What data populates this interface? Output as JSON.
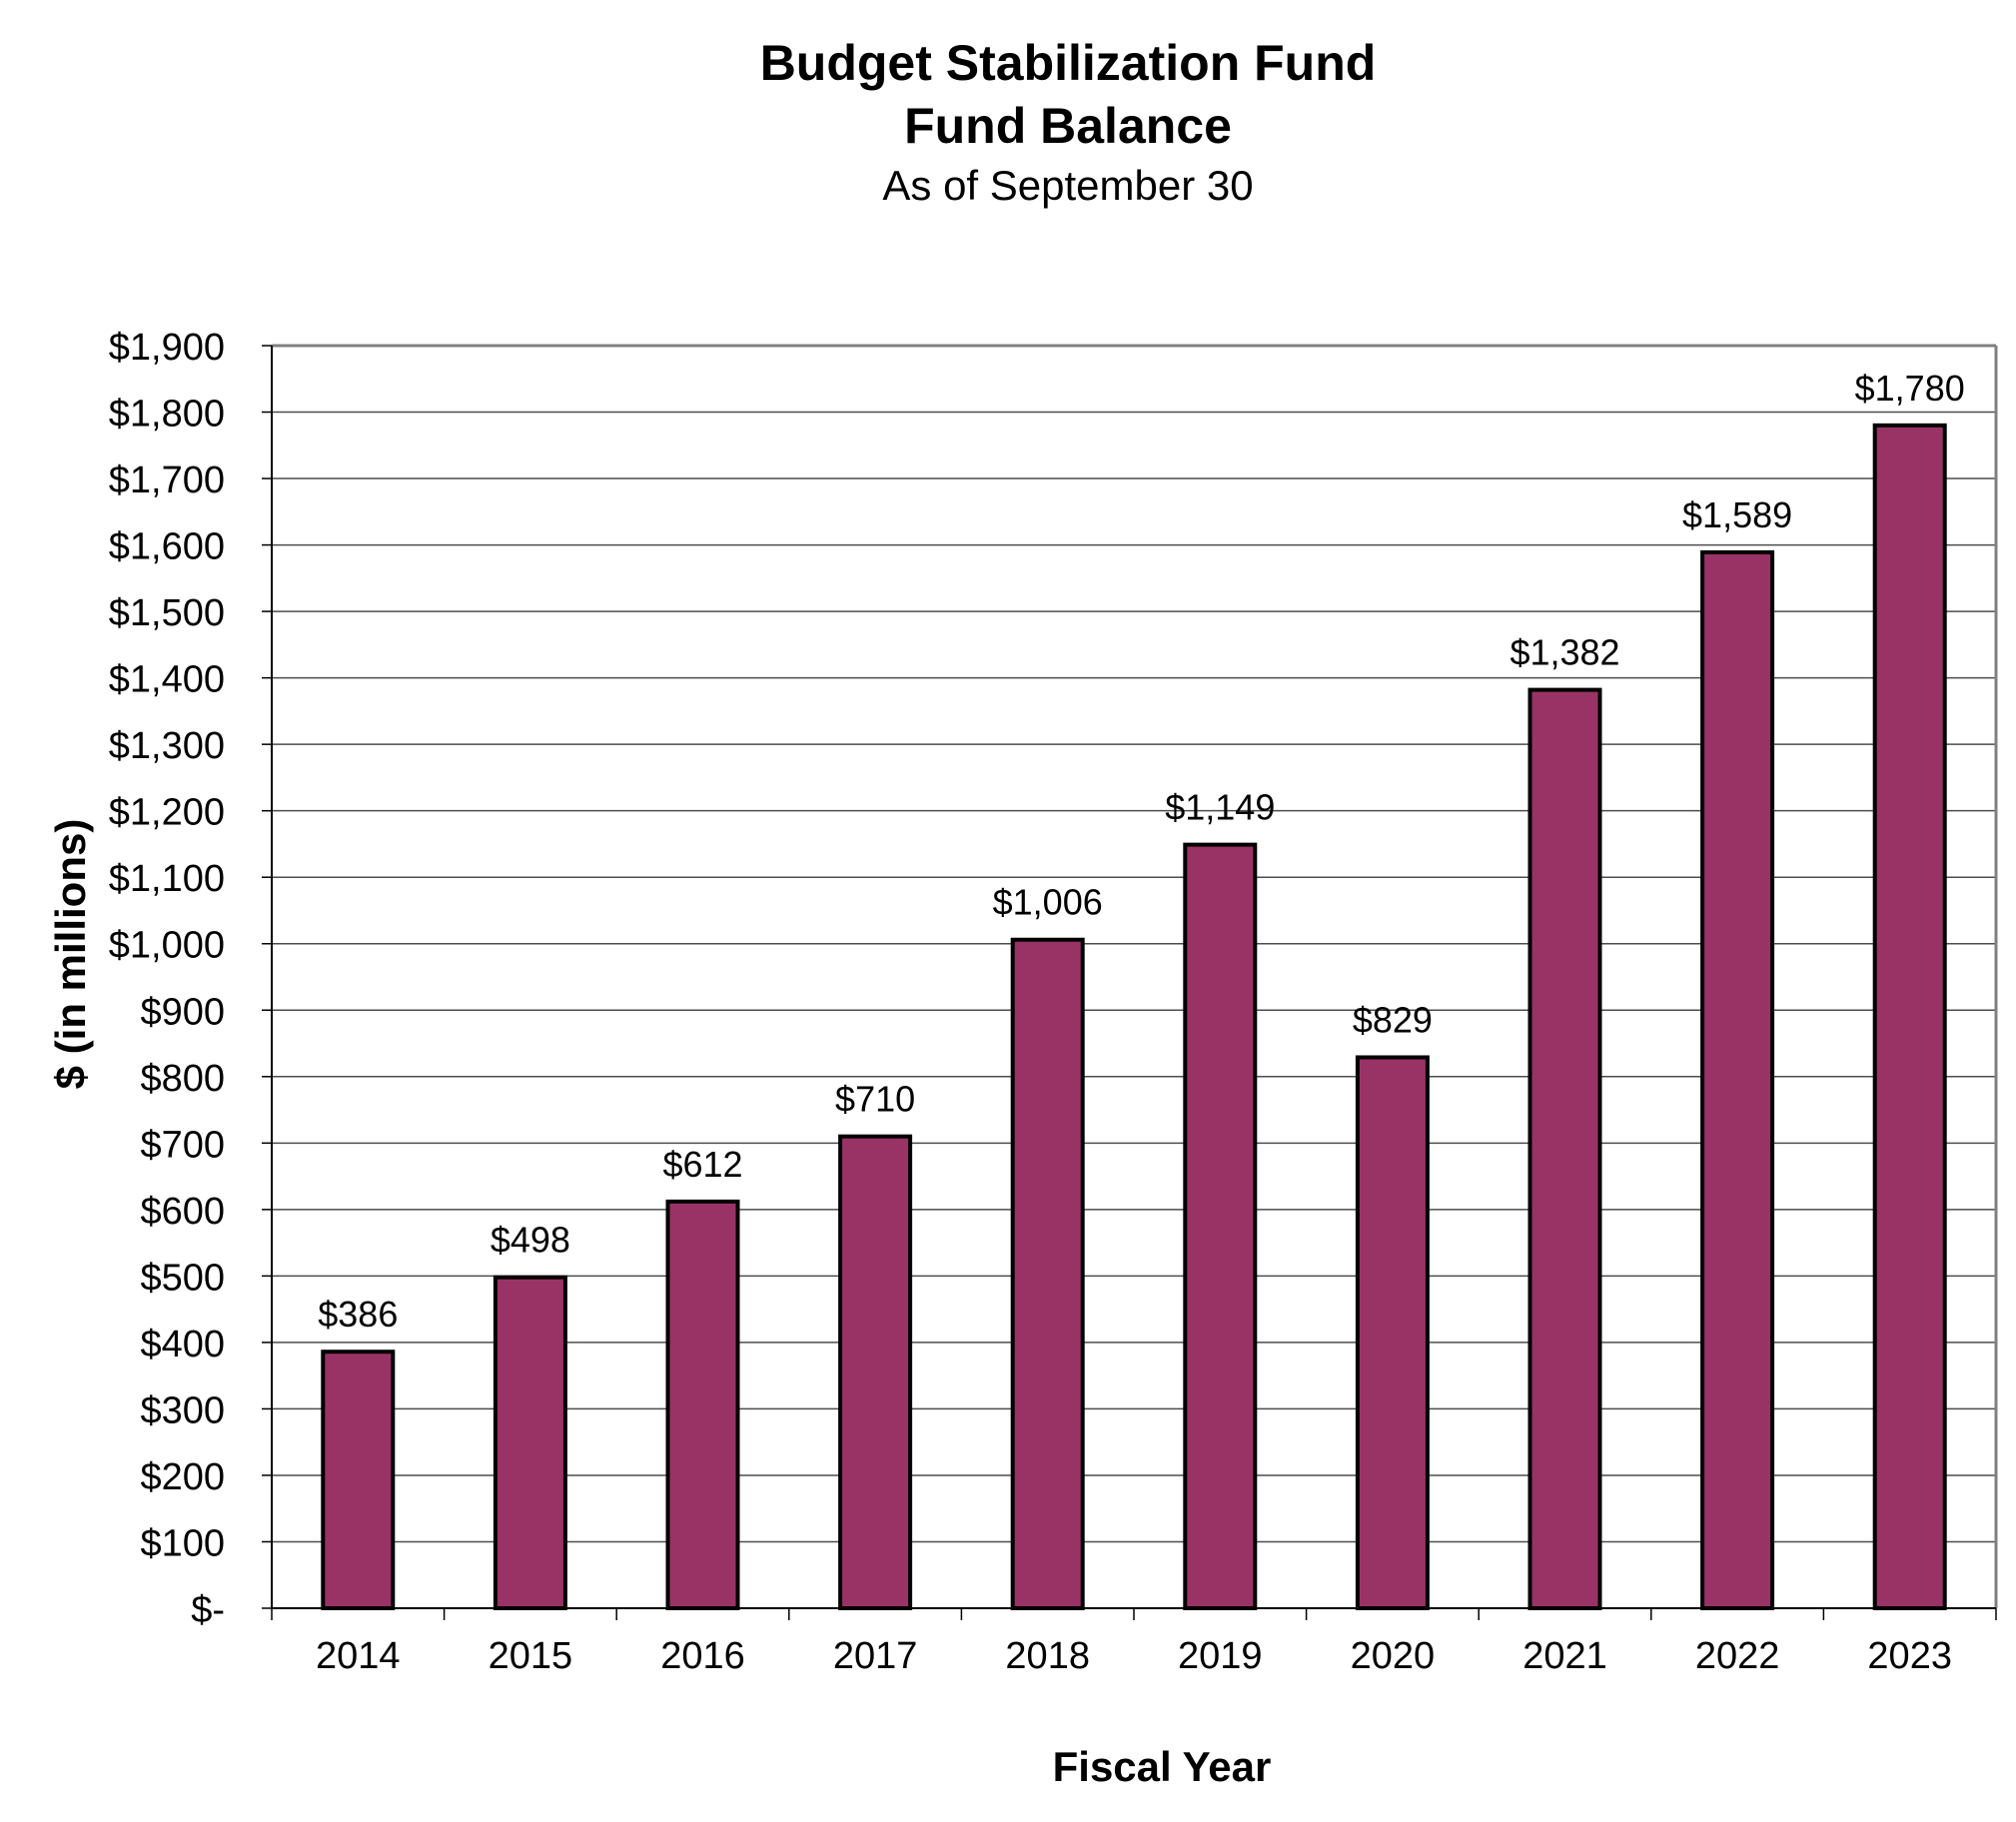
{
  "chart_data": {
    "type": "bar",
    "title": "Budget Stabilization Fund",
    "title_line2": "Fund Balance",
    "subtitle": "As of September 30",
    "xlabel": "Fiscal Year",
    "ylabel": "$ (in millions)",
    "categories": [
      "2014",
      "2015",
      "2016",
      "2017",
      "2018",
      "2019",
      "2020",
      "2021",
      "2022",
      "2023"
    ],
    "values": [
      386,
      498,
      612,
      710,
      1006,
      1149,
      829,
      1382,
      1589,
      1780
    ],
    "value_labels": [
      "$386",
      "$498",
      "$612",
      "$710",
      "$1,006",
      "$1,149",
      "$829",
      "$1,382",
      "$1,589",
      "$1,780"
    ],
    "ylim": [
      0,
      1900
    ],
    "yticks": [
      0,
      100,
      200,
      300,
      400,
      500,
      600,
      700,
      800,
      900,
      1000,
      1100,
      1200,
      1300,
      1400,
      1500,
      1600,
      1700,
      1800,
      1900
    ],
    "ytick_labels": [
      "$-",
      "$100",
      "$200",
      "$300",
      "$400",
      "$500",
      "$600",
      "$700",
      "$800",
      "$900",
      "$1,000",
      "$1,100",
      "$1,200",
      "$1,300",
      "$1,400",
      "$1,500",
      "$1,600",
      "$1,700",
      "$1,800",
      "$1,900"
    ],
    "grid": true,
    "legend": "none",
    "bar_color": "#993366"
  }
}
